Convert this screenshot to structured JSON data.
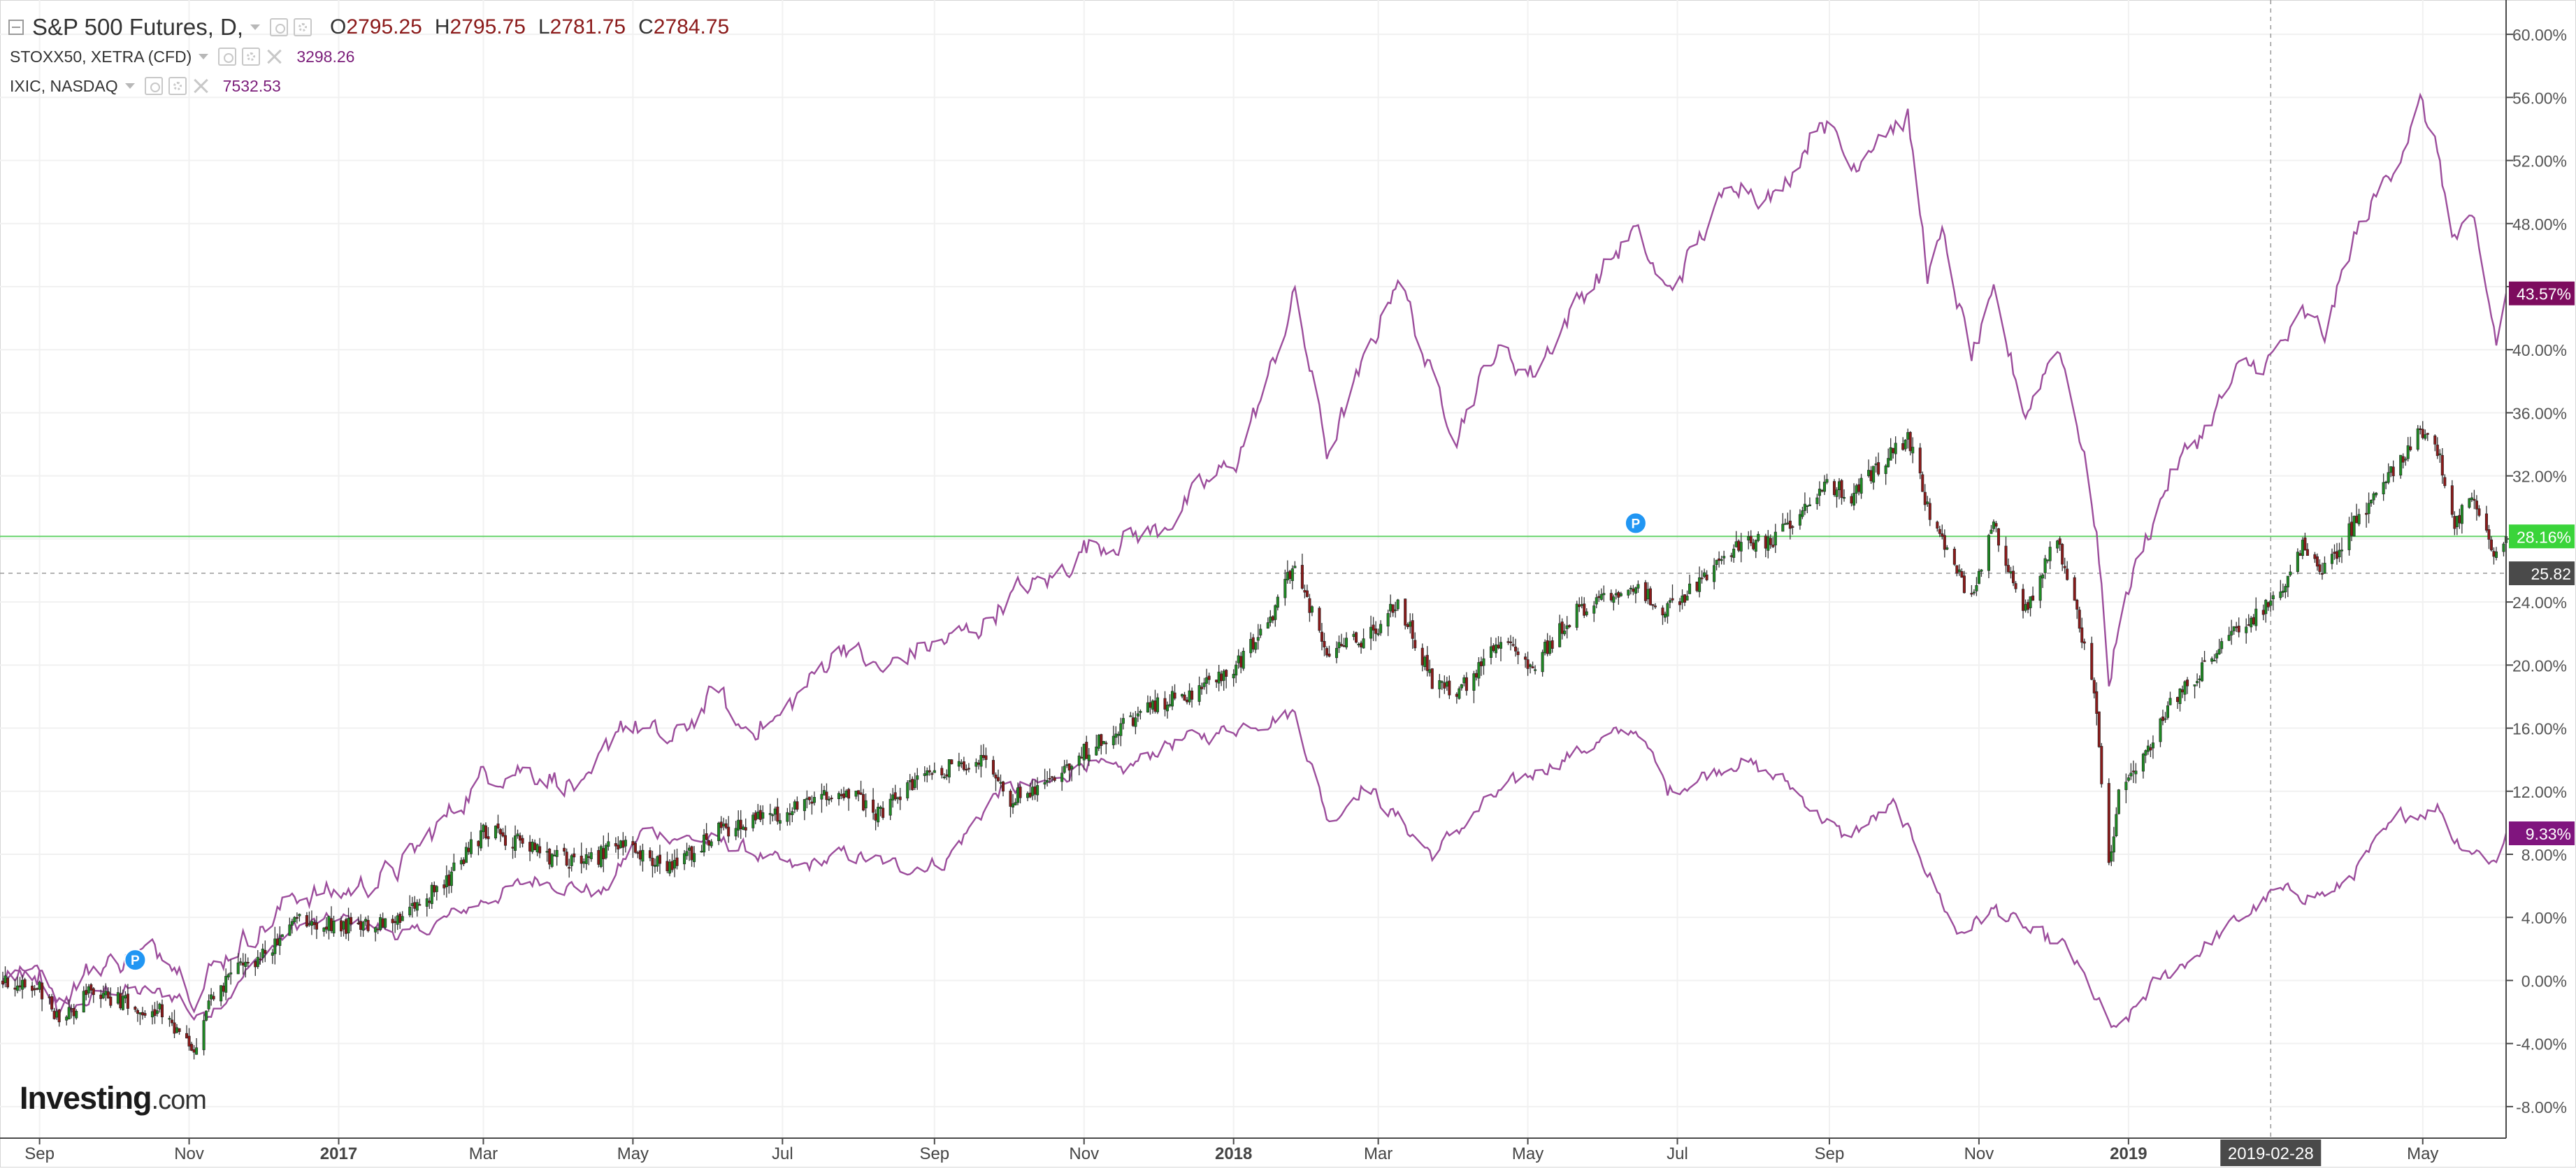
{
  "legend": {
    "main": {
      "title": "S&P 500 Futures, D,",
      "o_label": "O",
      "o": "2795.25",
      "h_label": "H",
      "h": "2795.75",
      "l_label": "L",
      "l": "2781.75",
      "c_label": "C",
      "c": "2784.75"
    },
    "compare1": {
      "title": "STOXX50, XETRA (CFD)",
      "last": "3298.26"
    },
    "compare2": {
      "title": "IXIC, NASDAQ",
      "last": "7532.53"
    }
  },
  "logo": {
    "brand": "Investing",
    "tld": ".com"
  },
  "colors": {
    "up": "#1f8b24",
    "down": "#8b1a1a",
    "compare": "#9c4d9c",
    "current_line": "#67d36b",
    "badge_current": "#3ad43a",
    "badge_compare": "#7d0c5e",
    "badge_compare2": "#80157e",
    "badge_cursor": "#4a4a4a",
    "marker": "#2196f3"
  },
  "chart_data": {
    "type": "line",
    "title": "S&P 500 Futures, D,",
    "x_axis": {
      "range": [
        "2016-08-17",
        "2019-06-04"
      ],
      "tick_labels": [
        {
          "date": "2016-09-01",
          "label": "Sep",
          "bold": false
        },
        {
          "date": "2016-11-01",
          "label": "Nov",
          "bold": false
        },
        {
          "date": "2017-01-01",
          "label": "2017",
          "bold": true
        },
        {
          "date": "2017-03-01",
          "label": "Mar",
          "bold": false
        },
        {
          "date": "2017-05-01",
          "label": "May",
          "bold": false
        },
        {
          "date": "2017-07-01",
          "label": "Jul",
          "bold": false
        },
        {
          "date": "2017-09-01",
          "label": "Sep",
          "bold": false
        },
        {
          "date": "2017-11-01",
          "label": "Nov",
          "bold": false
        },
        {
          "date": "2018-01-01",
          "label": "2018",
          "bold": true
        },
        {
          "date": "2018-03-01",
          "label": "Mar",
          "bold": false
        },
        {
          "date": "2018-05-01",
          "label": "May",
          "bold": false
        },
        {
          "date": "2018-07-01",
          "label": "Jul",
          "bold": false
        },
        {
          "date": "2018-09-01",
          "label": "Sep",
          "bold": false
        },
        {
          "date": "2018-11-01",
          "label": "Nov",
          "bold": false
        },
        {
          "date": "2019-01-01",
          "label": "2019",
          "bold": true
        },
        {
          "date": "2019-05-01",
          "label": "May",
          "bold": false
        }
      ],
      "cursor_date": "2019-02-28",
      "cursor_label": "2019-02-28"
    },
    "y_axis": {
      "unit": "%",
      "range": [
        -10,
        62
      ],
      "tick_values": [
        -8,
        -4,
        0,
        4,
        8,
        12,
        16,
        20,
        24,
        28,
        32,
        36,
        40,
        44,
        48,
        52,
        56,
        60
      ],
      "tick_labels": [
        "-8.00%",
        "-4.00%",
        "0.00%",
        "4.00%",
        "8.00%",
        "12.00%",
        "16.00%",
        "20.00%",
        "24.00%",
        "28.00%",
        "32.00%",
        "36.00%",
        "40.00%",
        "44.00%",
        "48.00%",
        "52.00%",
        "56.00%",
        "60.00%"
      ],
      "cursor_value": 25.82,
      "cursor_label": "25.82"
    },
    "grid": true,
    "legend_position": "top-left",
    "series": [
      {
        "name": "S&P 500 Futures, D,",
        "style": "candlestick",
        "last_label": "28.16%",
        "last_value": 28.16,
        "points": [
          [
            "2016-08-17",
            0.0
          ],
          [
            "2016-09-01",
            -0.5
          ],
          [
            "2016-09-09",
            -2.5
          ],
          [
            "2016-09-22",
            -0.8
          ],
          [
            "2016-10-10",
            -1.5
          ],
          [
            "2016-10-20",
            -2.0
          ],
          [
            "2016-11-04",
            -4.8
          ],
          [
            "2016-11-09",
            -1.0
          ],
          [
            "2016-11-22",
            0.8
          ],
          [
            "2016-12-05",
            2.0
          ],
          [
            "2016-12-14",
            4.0
          ],
          [
            "2017-01-02",
            3.5
          ],
          [
            "2017-01-25",
            3.7
          ],
          [
            "2017-02-15",
            6.5
          ],
          [
            "2017-03-01",
            9.5
          ],
          [
            "2017-03-15",
            8.8
          ],
          [
            "2017-03-28",
            7.8
          ],
          [
            "2017-04-13",
            7.5
          ],
          [
            "2017-04-26",
            8.8
          ],
          [
            "2017-05-17",
            7.0
          ],
          [
            "2017-06-05",
            9.5
          ],
          [
            "2017-06-29",
            10.5
          ],
          [
            "2017-07-26",
            12.0
          ],
          [
            "2017-08-10",
            10.5
          ],
          [
            "2017-08-25",
            12.8
          ],
          [
            "2017-09-06",
            13.5
          ],
          [
            "2017-09-20",
            14.2
          ],
          [
            "2017-10-02",
            11.5
          ],
          [
            "2017-10-20",
            13.0
          ],
          [
            "2017-11-01",
            14.5
          ],
          [
            "2017-11-15",
            16.0
          ],
          [
            "2017-12-01",
            17.5
          ],
          [
            "2017-12-18",
            18.5
          ],
          [
            "2018-01-02",
            20.0
          ],
          [
            "2018-01-15",
            22.5
          ],
          [
            "2018-01-26",
            26.5
          ],
          [
            "2018-02-08",
            20.5
          ],
          [
            "2018-02-26",
            22.0
          ],
          [
            "2018-03-09",
            24.0
          ],
          [
            "2018-03-23",
            19.0
          ],
          [
            "2018-04-02",
            18.0
          ],
          [
            "2018-04-18",
            21.5
          ],
          [
            "2018-05-03",
            20.0
          ],
          [
            "2018-05-21",
            23.5
          ],
          [
            "2018-06-13",
            25.0
          ],
          [
            "2018-06-27",
            23.5
          ],
          [
            "2018-07-25",
            27.5
          ],
          [
            "2018-08-10",
            28.0
          ],
          [
            "2018-08-29",
            31.5
          ],
          [
            "2018-09-10",
            30.8
          ],
          [
            "2018-09-21",
            32.5
          ],
          [
            "2018-10-03",
            34.5
          ],
          [
            "2018-10-11",
            30.0
          ],
          [
            "2018-10-17",
            28.0
          ],
          [
            "2018-10-29",
            24.0
          ],
          [
            "2018-11-07",
            28.8
          ],
          [
            "2018-11-20",
            23.5
          ],
          [
            "2018-12-03",
            28.0
          ],
          [
            "2018-12-10",
            24.0
          ],
          [
            "2018-12-19",
            17.0
          ],
          [
            "2018-12-24",
            7.0
          ],
          [
            "2018-12-28",
            12.0
          ],
          [
            "2019-01-08",
            14.5
          ],
          [
            "2019-01-18",
            17.5
          ],
          [
            "2019-02-01",
            20.0
          ],
          [
            "2019-02-15",
            22.5
          ],
          [
            "2019-03-01",
            24.0
          ],
          [
            "2019-03-13",
            27.5
          ],
          [
            "2019-03-22",
            26.0
          ],
          [
            "2019-04-03",
            29.0
          ],
          [
            "2019-04-15",
            31.5
          ],
          [
            "2019-04-30",
            35.0
          ],
          [
            "2019-05-08",
            33.0
          ],
          [
            "2019-05-13",
            29.0
          ],
          [
            "2019-05-22",
            30.5
          ],
          [
            "2019-05-31",
            27.0
          ],
          [
            "2019-06-04",
            28.16
          ]
        ]
      },
      {
        "name": "STOXX50, XETRA (CFD)",
        "style": "line",
        "last_label": "9.33%",
        "last_value": 9.33,
        "points": [
          [
            "2016-08-17",
            0.0
          ],
          [
            "2016-09-01",
            0.5
          ],
          [
            "2016-09-13",
            -2.0
          ],
          [
            "2016-09-30",
            -0.5
          ],
          [
            "2016-10-14",
            -0.8
          ],
          [
            "2016-10-28",
            -1.0
          ],
          [
            "2016-11-04",
            -2.5
          ],
          [
            "2016-11-16",
            -1.0
          ],
          [
            "2016-12-01",
            1.5
          ],
          [
            "2016-12-15",
            3.5
          ],
          [
            "2017-01-04",
            3.8
          ],
          [
            "2017-01-31",
            2.8
          ],
          [
            "2017-02-28",
            5.0
          ],
          [
            "2017-03-24",
            6.5
          ],
          [
            "2017-04-19",
            5.5
          ],
          [
            "2017-05-05",
            9.5
          ],
          [
            "2017-05-25",
            9.0
          ],
          [
            "2017-06-13",
            8.5
          ],
          [
            "2017-07-06",
            7.0
          ],
          [
            "2017-07-27",
            8.0
          ],
          [
            "2017-08-18",
            7.2
          ],
          [
            "2017-09-05",
            7.5
          ],
          [
            "2017-09-27",
            12.0
          ],
          [
            "2017-10-20",
            12.5
          ],
          [
            "2017-11-01",
            14.0
          ],
          [
            "2017-11-15",
            13.0
          ],
          [
            "2017-12-04",
            15.0
          ],
          [
            "2017-12-20",
            15.5
          ],
          [
            "2018-01-12",
            16.5
          ],
          [
            "2018-01-26",
            17.0
          ],
          [
            "2018-02-09",
            10.0
          ],
          [
            "2018-02-23",
            12.5
          ],
          [
            "2018-03-23",
            8.0
          ],
          [
            "2018-04-16",
            11.5
          ],
          [
            "2018-05-07",
            13.5
          ],
          [
            "2018-05-28",
            15.0
          ],
          [
            "2018-06-15",
            16.0
          ],
          [
            "2018-06-27",
            12.0
          ],
          [
            "2018-07-26",
            14.0
          ],
          [
            "2018-08-15",
            12.5
          ],
          [
            "2018-09-07",
            9.0
          ],
          [
            "2018-09-27",
            11.0
          ],
          [
            "2018-10-08",
            8.0
          ],
          [
            "2018-10-23",
            3.0
          ],
          [
            "2018-11-08",
            4.5
          ],
          [
            "2018-11-22",
            3.0
          ],
          [
            "2018-12-07",
            2.0
          ],
          [
            "2018-12-27",
            -3.5
          ],
          [
            "2019-01-10",
            -0.5
          ],
          [
            "2019-02-08",
            3.0
          ],
          [
            "2019-03-01",
            5.5
          ],
          [
            "2019-03-26",
            5.5
          ],
          [
            "2019-04-23",
            10.5
          ],
          [
            "2019-05-08",
            11.0
          ],
          [
            "2019-05-14",
            9.0
          ],
          [
            "2019-05-31",
            7.5
          ],
          [
            "2019-06-04",
            9.33
          ]
        ]
      },
      {
        "name": "IXIC, NASDAQ",
        "style": "line",
        "last_label": "43.57%",
        "last_value": 43.57,
        "points": [
          [
            "2016-08-17",
            0.0
          ],
          [
            "2016-09-01",
            0.5
          ],
          [
            "2016-09-09",
            -1.5
          ],
          [
            "2016-09-22",
            0.8
          ],
          [
            "2016-10-10",
            1.5
          ],
          [
            "2016-10-24",
            2.0
          ],
          [
            "2016-11-04",
            -1.0
          ],
          [
            "2016-11-09",
            0.5
          ],
          [
            "2016-11-22",
            2.5
          ],
          [
            "2016-12-05",
            3.8
          ],
          [
            "2016-12-14",
            5.5
          ],
          [
            "2017-01-02",
            5.5
          ],
          [
            "2017-01-25",
            7.0
          ],
          [
            "2017-02-15",
            10.5
          ],
          [
            "2017-03-01",
            13.0
          ],
          [
            "2017-03-15",
            13.5
          ],
          [
            "2017-03-28",
            13.0
          ],
          [
            "2017-04-13",
            12.0
          ],
          [
            "2017-04-26",
            16.5
          ],
          [
            "2017-05-17",
            15.0
          ],
          [
            "2017-06-05",
            18.5
          ],
          [
            "2017-06-12",
            16.0
          ],
          [
            "2017-06-29",
            16.5
          ],
          [
            "2017-07-26",
            21.5
          ],
          [
            "2017-08-10",
            19.5
          ],
          [
            "2017-08-25",
            21.0
          ],
          [
            "2017-09-06",
            21.5
          ],
          [
            "2017-09-20",
            22.5
          ],
          [
            "2017-10-02",
            24.5
          ],
          [
            "2017-10-20",
            25.5
          ],
          [
            "2017-11-01",
            27.5
          ],
          [
            "2017-11-15",
            28.0
          ],
          [
            "2017-12-01",
            28.5
          ],
          [
            "2017-12-18",
            31.0
          ],
          [
            "2018-01-02",
            33.0
          ],
          [
            "2018-01-15",
            38.0
          ],
          [
            "2018-01-26",
            43.5
          ],
          [
            "2018-02-08",
            33.5
          ],
          [
            "2018-02-26",
            40.0
          ],
          [
            "2018-03-09",
            45.0
          ],
          [
            "2018-03-23",
            38.0
          ],
          [
            "2018-04-02",
            35.0
          ],
          [
            "2018-04-18",
            40.0
          ],
          [
            "2018-05-03",
            38.5
          ],
          [
            "2018-05-21",
            43.0
          ],
          [
            "2018-06-13",
            47.5
          ],
          [
            "2018-06-27",
            43.5
          ],
          [
            "2018-07-25",
            51.0
          ],
          [
            "2018-08-10",
            49.5
          ],
          [
            "2018-08-29",
            55.0
          ],
          [
            "2018-09-10",
            51.5
          ],
          [
            "2018-09-21",
            54.0
          ],
          [
            "2018-10-03",
            54.5
          ],
          [
            "2018-10-11",
            45.0
          ],
          [
            "2018-10-17",
            47.0
          ],
          [
            "2018-10-29",
            39.5
          ],
          [
            "2018-11-07",
            43.0
          ],
          [
            "2018-11-20",
            36.0
          ],
          [
            "2018-12-03",
            40.5
          ],
          [
            "2018-12-10",
            36.5
          ],
          [
            "2018-12-19",
            28.5
          ],
          [
            "2018-12-24",
            18.5
          ],
          [
            "2018-12-28",
            23.0
          ],
          [
            "2019-01-08",
            28.0
          ],
          [
            "2019-01-18",
            32.0
          ],
          [
            "2019-02-01",
            35.0
          ],
          [
            "2019-02-15",
            38.5
          ],
          [
            "2019-03-01",
            39.5
          ],
          [
            "2019-03-13",
            42.0
          ],
          [
            "2019-03-22",
            41.0
          ],
          [
            "2019-04-03",
            47.0
          ],
          [
            "2019-04-15",
            50.5
          ],
          [
            "2019-04-30",
            55.5
          ],
          [
            "2019-05-08",
            52.0
          ],
          [
            "2019-05-13",
            47.0
          ],
          [
            "2019-05-22",
            47.5
          ],
          [
            "2019-05-31",
            40.5
          ],
          [
            "2019-06-04",
            43.57
          ]
        ]
      }
    ],
    "markers": [
      {
        "date": "2016-10-10",
        "value": 1.3,
        "label": "P"
      },
      {
        "date": "2018-06-14",
        "value": 29.0,
        "label": "P"
      }
    ]
  }
}
